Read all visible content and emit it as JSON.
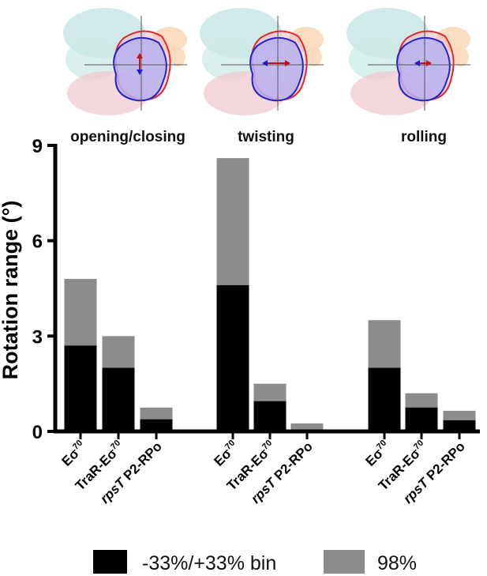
{
  "chart_data": {
    "type": "bar",
    "title": "",
    "xlabel": "",
    "ylabel": "Rotation range (°)",
    "ylim": [
      0,
      9
    ],
    "yticks": [
      0,
      3,
      6,
      9
    ],
    "groups": [
      "opening/closing",
      "twisting",
      "rolling"
    ],
    "categories": [
      {
        "main": "Eσ",
        "sup": "70",
        "italic_prefix": ""
      },
      {
        "main": "TraR-Eσ",
        "sup": "70",
        "italic_prefix": ""
      },
      {
        "main": " P2-RPo",
        "sup": "",
        "italic_prefix": "rpsT"
      }
    ],
    "series": [
      {
        "name": "98%",
        "color": "#8c8c8c",
        "values": [
          [
            4.8,
            3.0,
            0.75
          ],
          [
            8.6,
            1.5,
            0.25
          ],
          [
            3.5,
            1.2,
            0.65
          ]
        ]
      },
      {
        "name": "-33%/+33% bin",
        "color": "#000000",
        "values": [
          [
            2.7,
            2.0,
            0.38
          ],
          [
            4.6,
            0.95,
            0.0
          ],
          [
            2.0,
            0.75,
            0.35
          ]
        ]
      }
    ],
    "legend_position": "bottom",
    "grid": false
  },
  "thumbnails": [
    {
      "group": "opening/closing",
      "arrow": "vertical"
    },
    {
      "group": "twisting",
      "arrow": "horizontal"
    },
    {
      "group": "rolling",
      "arrow": "horizontal-short"
    }
  ]
}
